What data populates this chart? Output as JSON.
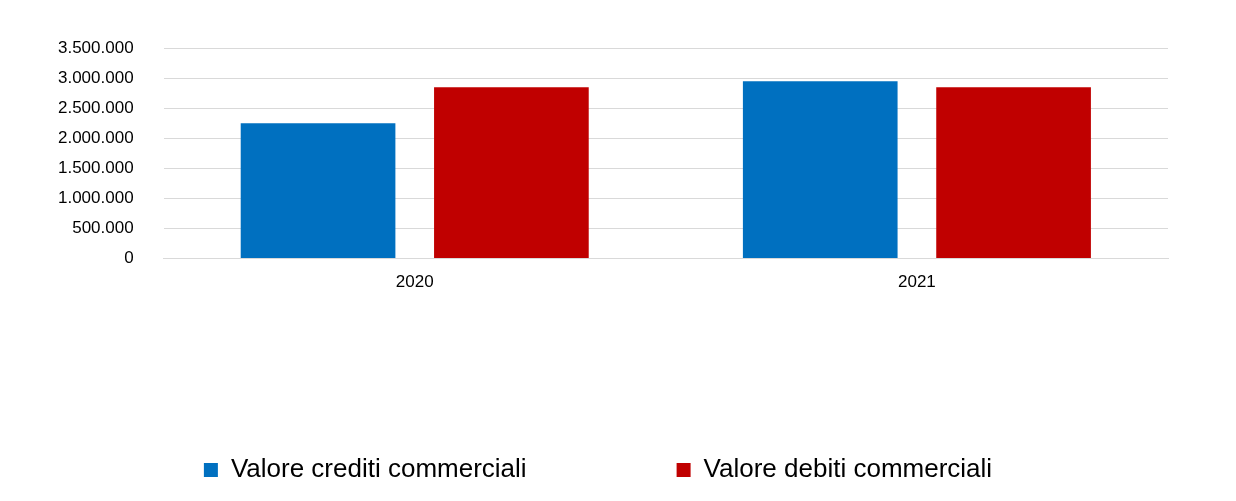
{
  "chart_data": {
    "type": "bar",
    "categories": [
      "2020",
      "2021"
    ],
    "series": [
      {
        "name": "Valore crediti commerciali",
        "color": "#0070c0",
        "values": [
          2250000,
          2950000
        ]
      },
      {
        "name": "Valore debiti commerciali",
        "color": "#c00000",
        "values": [
          2850000,
          2850000
        ]
      }
    ],
    "ylim": [
      0,
      3500000
    ],
    "yticks": [
      0,
      {
        "value": 500000,
        "label": "500.000"
      },
      {
        "value": 1000000,
        "label": "1.000.000"
      },
      {
        "value": 1500000,
        "label": "1.500.000"
      },
      {
        "value": 2000000,
        "label": "2.000.000"
      },
      {
        "value": 2500000,
        "label": "2.500.000"
      },
      {
        "value": 3000000,
        "label": "3.000.000"
      },
      {
        "value": 3500000,
        "label": "3.500.000"
      }
    ],
    "grid": "y",
    "legend": "bottom"
  }
}
